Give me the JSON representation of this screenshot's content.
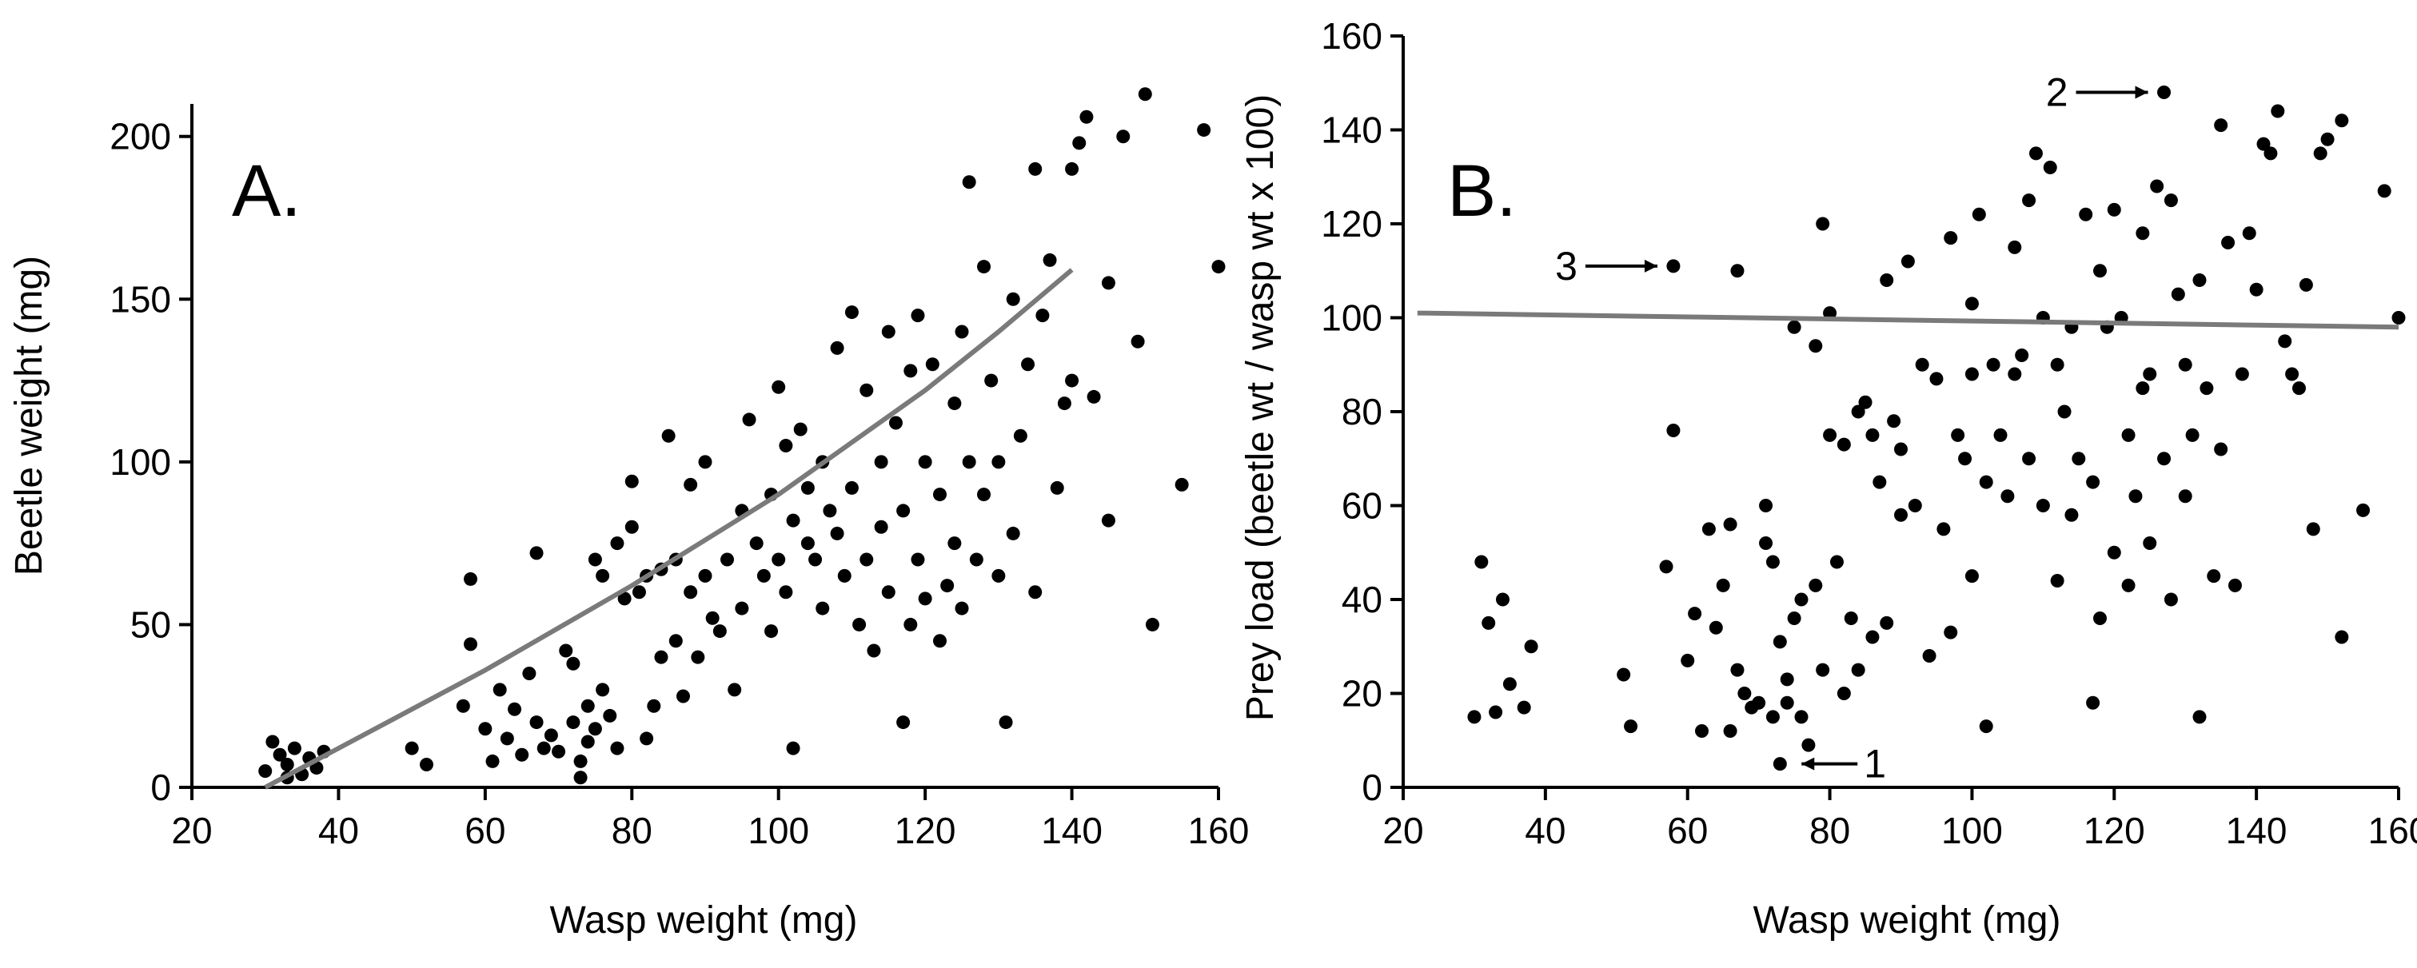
{
  "chart_data": [
    {
      "type": "scatter",
      "panel_label": "A.",
      "xlabel": "Wasp weight (mg)",
      "ylabel": "Beetle weight (mg)",
      "xlim": [
        20,
        160
      ],
      "ylim": [
        0,
        210
      ],
      "xticks": [
        20,
        40,
        60,
        80,
        100,
        120,
        140,
        160
      ],
      "yticks": [
        0,
        50,
        100,
        150,
        200
      ],
      "fit_line": {
        "type": "curve",
        "color": "#7a7a7a",
        "points": [
          [
            30,
            0
          ],
          [
            40,
            12
          ],
          [
            50,
            24
          ],
          [
            60,
            36
          ],
          [
            70,
            49
          ],
          [
            80,
            62
          ],
          [
            90,
            76
          ],
          [
            100,
            90
          ],
          [
            110,
            106
          ],
          [
            120,
            122
          ],
          [
            130,
            140
          ],
          [
            140,
            159
          ]
        ]
      },
      "points": [
        [
          30,
          5
        ],
        [
          31,
          14
        ],
        [
          32,
          10
        ],
        [
          33,
          7
        ],
        [
          34,
          12
        ],
        [
          35,
          4
        ],
        [
          36,
          9
        ],
        [
          37,
          6
        ],
        [
          38,
          11
        ],
        [
          33,
          3
        ],
        [
          50,
          12
        ],
        [
          52,
          7
        ],
        [
          57,
          25
        ],
        [
          58,
          64
        ],
        [
          58,
          44
        ],
        [
          60,
          18
        ],
        [
          61,
          8
        ],
        [
          62,
          30
        ],
        [
          63,
          15
        ],
        [
          64,
          24
        ],
        [
          65,
          10
        ],
        [
          66,
          35
        ],
        [
          67,
          72
        ],
        [
          67,
          20
        ],
        [
          68,
          12
        ],
        [
          69,
          16
        ],
        [
          70,
          11
        ],
        [
          71,
          42
        ],
        [
          72,
          38
        ],
        [
          72,
          20
        ],
        [
          73,
          8
        ],
        [
          73,
          3
        ],
        [
          74,
          25
        ],
        [
          74,
          14
        ],
        [
          75,
          70
        ],
        [
          75,
          18
        ],
        [
          76,
          65
        ],
        [
          76,
          30
        ],
        [
          77,
          22
        ],
        [
          78,
          75
        ],
        [
          78,
          12
        ],
        [
          79,
          58
        ],
        [
          80,
          80
        ],
        [
          80,
          94
        ],
        [
          81,
          60
        ],
        [
          82,
          65
        ],
        [
          82,
          15
        ],
        [
          83,
          25
        ],
        [
          84,
          67
        ],
        [
          84,
          40
        ],
        [
          85,
          108
        ],
        [
          86,
          70
        ],
        [
          86,
          45
        ],
        [
          87,
          28
        ],
        [
          88,
          60
        ],
        [
          88,
          93
        ],
        [
          89,
          40
        ],
        [
          90,
          100
        ],
        [
          90,
          65
        ],
        [
          91,
          52
        ],
        [
          92,
          48
        ],
        [
          93,
          70
        ],
        [
          94,
          30
        ],
        [
          95,
          55
        ],
        [
          95,
          85
        ],
        [
          96,
          113
        ],
        [
          97,
          75
        ],
        [
          98,
          65
        ],
        [
          99,
          90
        ],
        [
          99,
          48
        ],
        [
          100,
          123
        ],
        [
          100,
          70
        ],
        [
          101,
          105
        ],
        [
          101,
          60
        ],
        [
          102,
          12
        ],
        [
          102,
          82
        ],
        [
          103,
          110
        ],
        [
          104,
          75
        ],
        [
          104,
          92
        ],
        [
          105,
          70
        ],
        [
          106,
          100
        ],
        [
          106,
          55
        ],
        [
          107,
          85
        ],
        [
          108,
          135
        ],
        [
          108,
          78
        ],
        [
          109,
          65
        ],
        [
          110,
          146
        ],
        [
          110,
          92
        ],
        [
          111,
          50
        ],
        [
          112,
          122
        ],
        [
          112,
          70
        ],
        [
          113,
          42
        ],
        [
          114,
          100
        ],
        [
          114,
          80
        ],
        [
          115,
          140
        ],
        [
          115,
          60
        ],
        [
          116,
          112
        ],
        [
          117,
          20
        ],
        [
          117,
          85
        ],
        [
          118,
          128
        ],
        [
          118,
          50
        ],
        [
          119,
          145
        ],
        [
          119,
          70
        ],
        [
          120,
          100
        ],
        [
          120,
          58
        ],
        [
          121,
          130
        ],
        [
          122,
          90
        ],
        [
          122,
          45
        ],
        [
          123,
          62
        ],
        [
          124,
          118
        ],
        [
          124,
          75
        ],
        [
          125,
          140
        ],
        [
          125,
          55
        ],
        [
          126,
          186
        ],
        [
          126,
          100
        ],
        [
          127,
          70
        ],
        [
          128,
          160
        ],
        [
          128,
          90
        ],
        [
          129,
          125
        ],
        [
          130,
          100
        ],
        [
          130,
          65
        ],
        [
          131,
          20
        ],
        [
          132,
          150
        ],
        [
          132,
          78
        ],
        [
          133,
          108
        ],
        [
          134,
          130
        ],
        [
          135,
          190
        ],
        [
          135,
          60
        ],
        [
          136,
          145
        ],
        [
          137,
          162
        ],
        [
          138,
          92
        ],
        [
          139,
          118
        ],
        [
          140,
          190
        ],
        [
          140,
          125
        ],
        [
          141,
          198
        ],
        [
          142,
          206
        ],
        [
          143,
          120
        ],
        [
          145,
          82
        ],
        [
          145,
          155
        ],
        [
          147,
          200
        ],
        [
          149,
          137
        ],
        [
          150,
          213
        ],
        [
          151,
          50
        ],
        [
          155,
          93
        ],
        [
          158,
          202
        ],
        [
          160,
          160
        ]
      ]
    },
    {
      "type": "scatter",
      "panel_label": "B.",
      "xlabel": "Wasp weight (mg)",
      "ylabel": "Prey load (beetle wt / wasp wt x 100)",
      "xlim": [
        20,
        160
      ],
      "ylim": [
        0,
        160
      ],
      "xticks": [
        20,
        40,
        60,
        80,
        100,
        120,
        140,
        160
      ],
      "yticks": [
        0,
        20,
        40,
        60,
        80,
        100,
        120,
        140,
        160
      ],
      "fit_line": {
        "type": "line",
        "color": "#7a7a7a",
        "points": [
          [
            22,
            101
          ],
          [
            160,
            98
          ]
        ]
      },
      "annotations": [
        {
          "text": "1",
          "x": 77,
          "y": 5,
          "arrow_to": [
            74,
            5
          ],
          "side": "right"
        },
        {
          "text": "2",
          "x": 127,
          "y": 148,
          "arrow_to": [
            127,
            148
          ],
          "side": "left"
        },
        {
          "text": "3",
          "x": 58,
          "y": 111,
          "arrow_to": [
            58,
            111
          ],
          "side": "left"
        }
      ],
      "points": [
        [
          30,
          15
        ],
        [
          31,
          48
        ],
        [
          32,
          35
        ],
        [
          33,
          16
        ],
        [
          34,
          40
        ],
        [
          35,
          22
        ],
        [
          37,
          17
        ],
        [
          38,
          30
        ],
        [
          51,
          24
        ],
        [
          52,
          13
        ],
        [
          57,
          47
        ],
        [
          58,
          111
        ],
        [
          58,
          76
        ],
        [
          60,
          27
        ],
        [
          61,
          37
        ],
        [
          62,
          12
        ],
        [
          63,
          55
        ],
        [
          64,
          34
        ],
        [
          65,
          43
        ],
        [
          66,
          56
        ],
        [
          66,
          12
        ],
        [
          67,
          110
        ],
        [
          67,
          25
        ],
        [
          68,
          20
        ],
        [
          69,
          17
        ],
        [
          70,
          18
        ],
        [
          71,
          60
        ],
        [
          71,
          52
        ],
        [
          72,
          15
        ],
        [
          72,
          48
        ],
        [
          73,
          31
        ],
        [
          73,
          5
        ],
        [
          74,
          18
        ],
        [
          74,
          23
        ],
        [
          75,
          98
        ],
        [
          75,
          36
        ],
        [
          76,
          40
        ],
        [
          76,
          15
        ],
        [
          77,
          9
        ],
        [
          78,
          94
        ],
        [
          78,
          43
        ],
        [
          79,
          120
        ],
        [
          79,
          25
        ],
        [
          80,
          75
        ],
        [
          80,
          101
        ],
        [
          81,
          48
        ],
        [
          82,
          73
        ],
        [
          82,
          20
        ],
        [
          83,
          36
        ],
        [
          84,
          80
        ],
        [
          84,
          25
        ],
        [
          85,
          82
        ],
        [
          86,
          75
        ],
        [
          86,
          32
        ],
        [
          87,
          65
        ],
        [
          88,
          108
        ],
        [
          88,
          35
        ],
        [
          89,
          78
        ],
        [
          90,
          72
        ],
        [
          90,
          58
        ],
        [
          91,
          112
        ],
        [
          92,
          60
        ],
        [
          93,
          90
        ],
        [
          94,
          28
        ],
        [
          95,
          87
        ],
        [
          96,
          55
        ],
        [
          97,
          33
        ],
        [
          97,
          117
        ],
        [
          98,
          75
        ],
        [
          99,
          70
        ],
        [
          100,
          103
        ],
        [
          100,
          88
        ],
        [
          100,
          45
        ],
        [
          101,
          122
        ],
        [
          102,
          13
        ],
        [
          102,
          65
        ],
        [
          103,
          90
        ],
        [
          104,
          75
        ],
        [
          105,
          62
        ],
        [
          106,
          115
        ],
        [
          106,
          88
        ],
        [
          107,
          92
        ],
        [
          108,
          125
        ],
        [
          108,
          70
        ],
        [
          109,
          135
        ],
        [
          110,
          100
        ],
        [
          110,
          60
        ],
        [
          111,
          132
        ],
        [
          112,
          44
        ],
        [
          112,
          90
        ],
        [
          113,
          80
        ],
        [
          114,
          98
        ],
        [
          114,
          58
        ],
        [
          115,
          70
        ],
        [
          116,
          122
        ],
        [
          117,
          18
        ],
        [
          117,
          65
        ],
        [
          118,
          110
        ],
        [
          118,
          36
        ],
        [
          119,
          98
        ],
        [
          120,
          123
        ],
        [
          120,
          50
        ],
        [
          121,
          100
        ],
        [
          122,
          75
        ],
        [
          122,
          43
        ],
        [
          123,
          62
        ],
        [
          124,
          118
        ],
        [
          124,
          85
        ],
        [
          125,
          88
        ],
        [
          125,
          52
        ],
        [
          126,
          128
        ],
        [
          127,
          148
        ],
        [
          127,
          70
        ],
        [
          128,
          125
        ],
        [
          128,
          40
        ],
        [
          129,
          105
        ],
        [
          130,
          90
        ],
        [
          130,
          62
        ],
        [
          131,
          75
        ],
        [
          132,
          15
        ],
        [
          132,
          108
        ],
        [
          133,
          85
        ],
        [
          134,
          45
        ],
        [
          135,
          72
        ],
        [
          135,
          141
        ],
        [
          136,
          116
        ],
        [
          137,
          43
        ],
        [
          138,
          88
        ],
        [
          139,
          118
        ],
        [
          140,
          106
        ],
        [
          141,
          137
        ],
        [
          142,
          135
        ],
        [
          143,
          144
        ],
        [
          144,
          95
        ],
        [
          145,
          88
        ],
        [
          146,
          85
        ],
        [
          147,
          107
        ],
        [
          148,
          55
        ],
        [
          149,
          135
        ],
        [
          150,
          138
        ],
        [
          152,
          32
        ],
        [
          152,
          142
        ],
        [
          155,
          59
        ],
        [
          158,
          127
        ],
        [
          160,
          100
        ]
      ]
    }
  ]
}
